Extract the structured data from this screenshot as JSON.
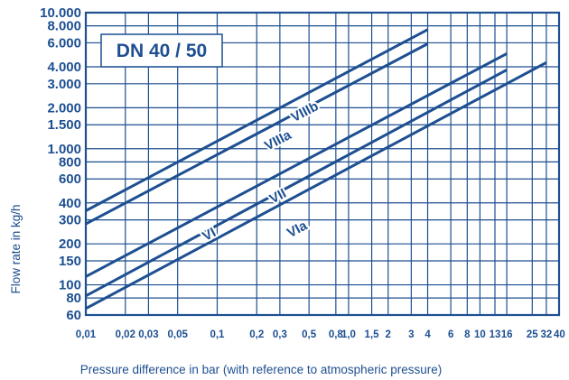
{
  "chart_data": {
    "type": "line",
    "title": "DN 40 / 50",
    "xlabel": "Pressure difference in bar (with reference to atmospheric pressure)",
    "ylabel": "Flow rate in kg/h",
    "x_scale": "log",
    "y_scale": "log",
    "xlim": [
      0.01,
      40
    ],
    "ylim": [
      60,
      10000
    ],
    "grid": true,
    "x_ticks": [
      {
        "v": 0.01,
        "label": "0,01"
      },
      {
        "v": 0.02,
        "label": "0,02"
      },
      {
        "v": 0.03,
        "label": "0,03"
      },
      {
        "v": 0.05,
        "label": "0,05"
      },
      {
        "v": 0.1,
        "label": "0,1"
      },
      {
        "v": 0.2,
        "label": "0,2"
      },
      {
        "v": 0.3,
        "label": "0,3"
      },
      {
        "v": 0.5,
        "label": "0,5"
      },
      {
        "v": 0.8,
        "label": "0,8"
      },
      {
        "v": 1.0,
        "label": "1,0"
      },
      {
        "v": 1.5,
        "label": "1,5"
      },
      {
        "v": 2,
        "label": "2"
      },
      {
        "v": 3,
        "label": "3"
      },
      {
        "v": 4,
        "label": "4"
      },
      {
        "v": 6,
        "label": "6"
      },
      {
        "v": 8,
        "label": "8"
      },
      {
        "v": 10,
        "label": "10"
      },
      {
        "v": 13,
        "label": "13"
      },
      {
        "v": 16,
        "label": "16"
      },
      {
        "v": 25,
        "label": "25"
      },
      {
        "v": 32,
        "label": "32"
      },
      {
        "v": 40,
        "label": "40"
      }
    ],
    "y_ticks": [
      {
        "v": 60,
        "label": "60"
      },
      {
        "v": 80,
        "label": "80"
      },
      {
        "v": 100,
        "label": "100"
      },
      {
        "v": 150,
        "label": "150"
      },
      {
        "v": 200,
        "label": "200"
      },
      {
        "v": 300,
        "label": "300"
      },
      {
        "v": 400,
        "label": "400"
      },
      {
        "v": 600,
        "label": "600"
      },
      {
        "v": 800,
        "label": "800"
      },
      {
        "v": 1000,
        "label": "1.000"
      },
      {
        "v": 1500,
        "label": "1.500"
      },
      {
        "v": 2000,
        "label": "2.000"
      },
      {
        "v": 3000,
        "label": "3.000"
      },
      {
        "v": 4000,
        "label": "4.000"
      },
      {
        "v": 6000,
        "label": "6.000"
      },
      {
        "v": 8000,
        "label": "8.000"
      },
      {
        "v": 10000,
        "label": "10.000"
      }
    ],
    "series": [
      {
        "name": "VIIIb",
        "x": [
          0.01,
          4
        ],
        "y": [
          350,
          7500
        ]
      },
      {
        "name": "VIIIa",
        "x": [
          0.01,
          4
        ],
        "y": [
          280,
          5900
        ]
      },
      {
        "name": "VII",
        "x": [
          0.01,
          16
        ],
        "y": [
          115,
          5000
        ]
      },
      {
        "name": "VI",
        "x": [
          0.01,
          16
        ],
        "y": [
          83,
          3800
        ]
      },
      {
        "name": "VIa",
        "x": [
          0.01,
          32
        ],
        "y": [
          67,
          4300
        ]
      }
    ]
  },
  "colors": {
    "line": "#1d4f91",
    "text": "#1d4f91",
    "background": "#ffffff"
  }
}
